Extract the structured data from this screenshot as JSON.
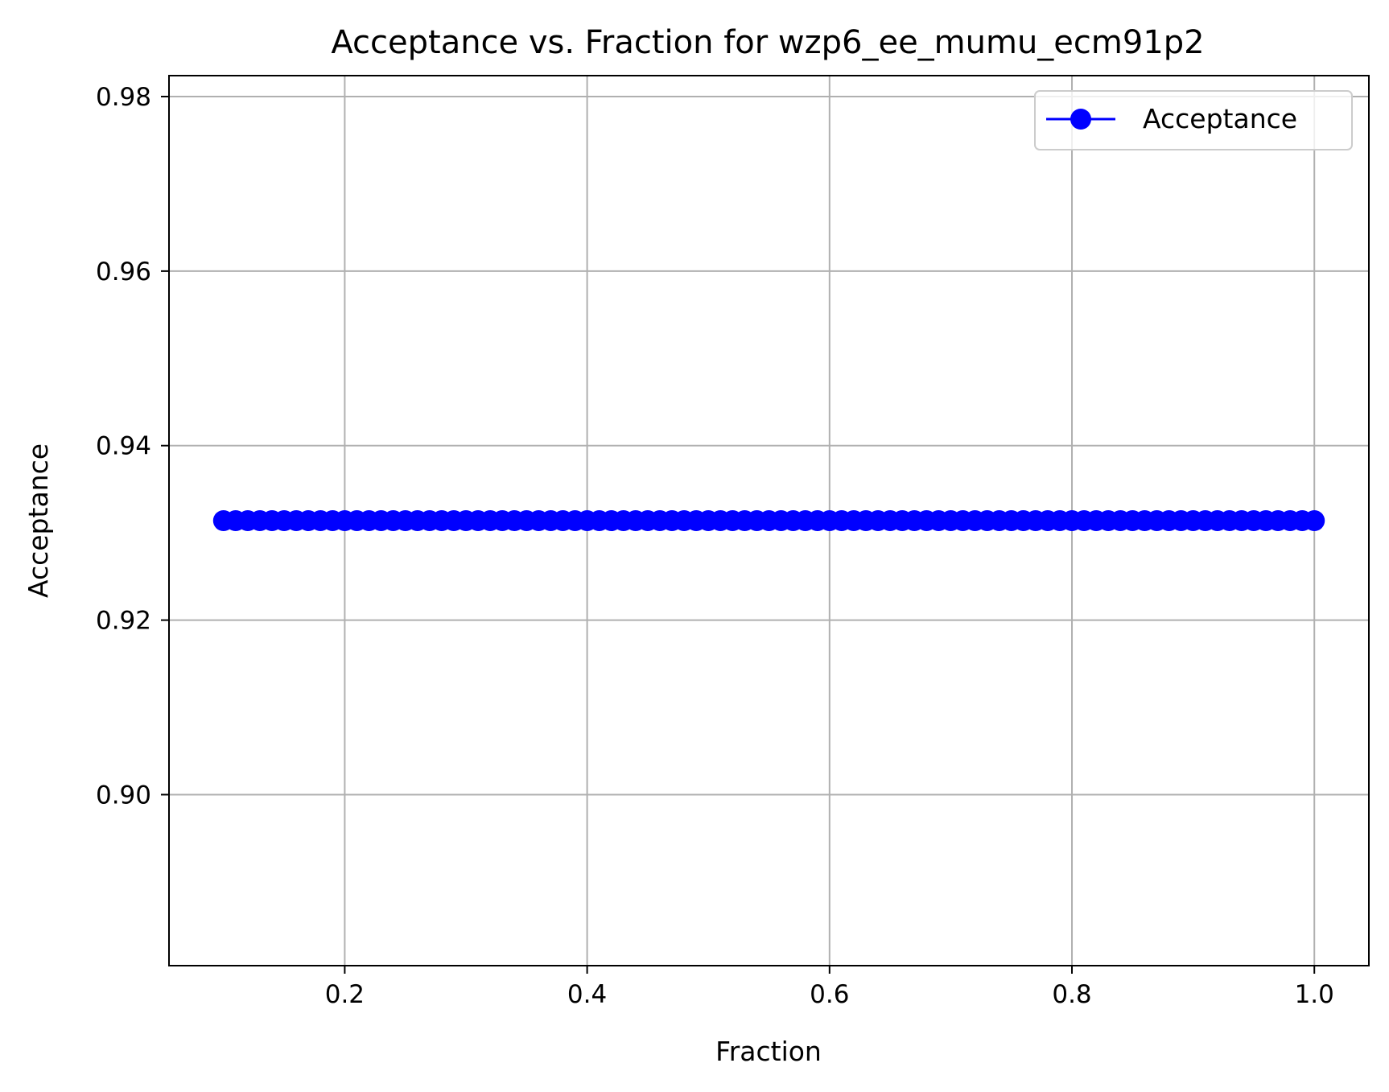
{
  "chart_data": {
    "type": "line",
    "title": "Acceptance vs. Fraction for wzp6_ee_mumu_ecm91p2",
    "xlabel": "Fraction",
    "ylabel": "Acceptance",
    "xlim": [
      0.055,
      1.045
    ],
    "ylim": [
      0.8804,
      0.9824
    ],
    "grid": true,
    "legend_position": "top-right",
    "x_ticks": [
      "0.2",
      "0.4",
      "0.6",
      "0.8",
      "1.0"
    ],
    "x_tick_values": [
      0.2,
      0.4,
      0.6,
      0.8,
      1.0
    ],
    "y_ticks": [
      "0.90",
      "0.92",
      "0.94",
      "0.96",
      "0.98"
    ],
    "y_tick_values": [
      0.9,
      0.92,
      0.94,
      0.96,
      0.98
    ],
    "series": [
      {
        "name": "Acceptance",
        "color": "#0000ff",
        "marker": "circle",
        "x": [
          0.1,
          0.11,
          0.12,
          0.13,
          0.14,
          0.15,
          0.16,
          0.17,
          0.18,
          0.19,
          0.2,
          0.21,
          0.22,
          0.23,
          0.24,
          0.25,
          0.26,
          0.27,
          0.28,
          0.29,
          0.3,
          0.31,
          0.32,
          0.33,
          0.34,
          0.35,
          0.36,
          0.37,
          0.38,
          0.39,
          0.4,
          0.41,
          0.42,
          0.43,
          0.44,
          0.45,
          0.46,
          0.47,
          0.48,
          0.49,
          0.5,
          0.51,
          0.52,
          0.53,
          0.54,
          0.55,
          0.56,
          0.57,
          0.58,
          0.59,
          0.6,
          0.61,
          0.62,
          0.63,
          0.64,
          0.65,
          0.66,
          0.67,
          0.68,
          0.69,
          0.7,
          0.71,
          0.72,
          0.73,
          0.74,
          0.75,
          0.76,
          0.77,
          0.78,
          0.79,
          0.8,
          0.81,
          0.82,
          0.83,
          0.84,
          0.85,
          0.86,
          0.87,
          0.88,
          0.89,
          0.9,
          0.91,
          0.92,
          0.93,
          0.94,
          0.95,
          0.96,
          0.97,
          0.98,
          0.99,
          1.0
        ],
        "y": [
          0.9314,
          0.9314,
          0.9314,
          0.9314,
          0.9314,
          0.9314,
          0.9314,
          0.9314,
          0.9314,
          0.9314,
          0.9314,
          0.9314,
          0.9314,
          0.9314,
          0.9314,
          0.9314,
          0.9314,
          0.9314,
          0.9314,
          0.9314,
          0.9314,
          0.9314,
          0.9314,
          0.9314,
          0.9314,
          0.9314,
          0.9314,
          0.9314,
          0.9314,
          0.9314,
          0.9314,
          0.9314,
          0.9314,
          0.9314,
          0.9314,
          0.9314,
          0.9314,
          0.9314,
          0.9314,
          0.9314,
          0.9314,
          0.9314,
          0.9314,
          0.9314,
          0.9314,
          0.9314,
          0.9314,
          0.9314,
          0.9314,
          0.9314,
          0.9314,
          0.9314,
          0.9314,
          0.9314,
          0.9314,
          0.9314,
          0.9314,
          0.9314,
          0.9314,
          0.9314,
          0.9314,
          0.9314,
          0.9314,
          0.9314,
          0.9314,
          0.9314,
          0.9314,
          0.9314,
          0.9314,
          0.9314,
          0.9314,
          0.9314,
          0.9314,
          0.9314,
          0.9314,
          0.9314,
          0.9314,
          0.9314,
          0.9314,
          0.9314,
          0.9314,
          0.9314,
          0.9314,
          0.9314,
          0.9314,
          0.9314,
          0.9314,
          0.9314,
          0.9314,
          0.9314,
          0.9314
        ]
      }
    ]
  }
}
